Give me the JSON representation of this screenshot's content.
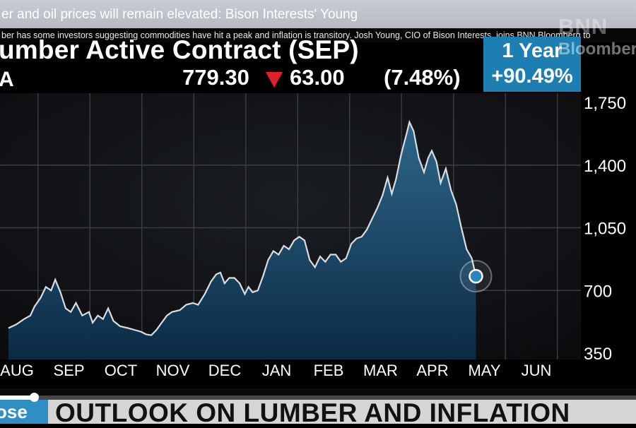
{
  "headline": "er and oil prices will remain elevated: Bison Interests' Young",
  "subtitle": "ber has some investors suggesting commodities have hit a peak and inflation is transitory. Josh Young, CIO of Bison Interests, joins BNN Bloomberg to",
  "logo": {
    "line1": "BNN",
    "line2": "Bloomberg"
  },
  "quote": {
    "title": "umber Active Contract (SEP)",
    "ticker_fragment": "A",
    "price": "779.30",
    "change": "63.00",
    "change_direction": "down",
    "change_pct": "(7.48%)",
    "period_label": "1 Year",
    "period_return": "+90.49%",
    "colors": {
      "down": "#e3202a",
      "period_box": "#1d7fb1"
    }
  },
  "chart_data": {
    "type": "area",
    "title": "",
    "xlabel": "",
    "ylabel": "",
    "ylim": [
      350,
      1750
    ],
    "y_ticks": [
      "1,750",
      "1,400",
      "1,050",
      "700",
      "350"
    ],
    "y_tick_values": [
      1750,
      1400,
      1050,
      700,
      350
    ],
    "x_ticks": [
      "AUG",
      "SEP",
      "OCT",
      "NOV",
      "DEC",
      "JAN",
      "FEB",
      "MAR",
      "APR",
      "MAY",
      "JUN"
    ],
    "grid": true,
    "series": [
      {
        "values": [
          [
            0,
            490
          ],
          [
            0.15,
            510
          ],
          [
            0.3,
            540
          ],
          [
            0.42,
            560
          ],
          [
            0.5,
            610
          ],
          [
            0.62,
            660
          ],
          [
            0.72,
            720
          ],
          [
            0.82,
            700
          ],
          [
            0.9,
            760
          ],
          [
            1.0,
            690
          ],
          [
            1.1,
            600
          ],
          [
            1.2,
            580
          ],
          [
            1.3,
            630
          ],
          [
            1.42,
            560
          ],
          [
            1.55,
            580
          ],
          [
            1.62,
            520
          ],
          [
            1.72,
            560
          ],
          [
            1.82,
            540
          ],
          [
            1.92,
            600
          ],
          [
            2.02,
            530
          ],
          [
            2.15,
            500
          ],
          [
            2.3,
            490
          ],
          [
            2.42,
            480
          ],
          [
            2.55,
            470
          ],
          [
            2.65,
            455
          ],
          [
            2.75,
            450
          ],
          [
            2.85,
            480
          ],
          [
            2.95,
            520
          ],
          [
            3.05,
            560
          ],
          [
            3.15,
            580
          ],
          [
            3.3,
            590
          ],
          [
            3.42,
            620
          ],
          [
            3.55,
            630
          ],
          [
            3.65,
            620
          ],
          [
            3.78,
            680
          ],
          [
            3.9,
            750
          ],
          [
            4.0,
            790
          ],
          [
            4.08,
            800
          ],
          [
            4.16,
            740
          ],
          [
            4.25,
            770
          ],
          [
            4.35,
            770
          ],
          [
            4.45,
            740
          ],
          [
            4.55,
            680
          ],
          [
            4.62,
            720
          ],
          [
            4.7,
            690
          ],
          [
            4.8,
            700
          ],
          [
            4.9,
            780
          ],
          [
            5.0,
            870
          ],
          [
            5.1,
            920
          ],
          [
            5.2,
            900
          ],
          [
            5.3,
            950
          ],
          [
            5.4,
            930
          ],
          [
            5.5,
            980
          ],
          [
            5.6,
            1000
          ],
          [
            5.7,
            980
          ],
          [
            5.8,
            870
          ],
          [
            5.9,
            830
          ],
          [
            6.0,
            890
          ],
          [
            6.1,
            860
          ],
          [
            6.2,
            900
          ],
          [
            6.3,
            900
          ],
          [
            6.4,
            860
          ],
          [
            6.5,
            880
          ],
          [
            6.6,
            960
          ],
          [
            6.7,
            990
          ],
          [
            6.8,
            1000
          ],
          [
            6.9,
            1040
          ],
          [
            7.0,
            1100
          ],
          [
            7.1,
            1160
          ],
          [
            7.2,
            1230
          ],
          [
            7.3,
            1330
          ],
          [
            7.38,
            1240
          ],
          [
            7.46,
            1320
          ],
          [
            7.56,
            1460
          ],
          [
            7.66,
            1570
          ],
          [
            7.72,
            1640
          ],
          [
            7.8,
            1590
          ],
          [
            7.9,
            1440
          ],
          [
            8.0,
            1360
          ],
          [
            8.08,
            1440
          ],
          [
            8.15,
            1480
          ],
          [
            8.24,
            1420
          ],
          [
            8.32,
            1300
          ],
          [
            8.42,
            1380
          ],
          [
            8.52,
            1260
          ],
          [
            8.62,
            1180
          ],
          [
            8.72,
            1050
          ],
          [
            8.82,
            930
          ],
          [
            8.92,
            880
          ],
          [
            9.0,
            779.3
          ]
        ]
      }
    ]
  }
}
